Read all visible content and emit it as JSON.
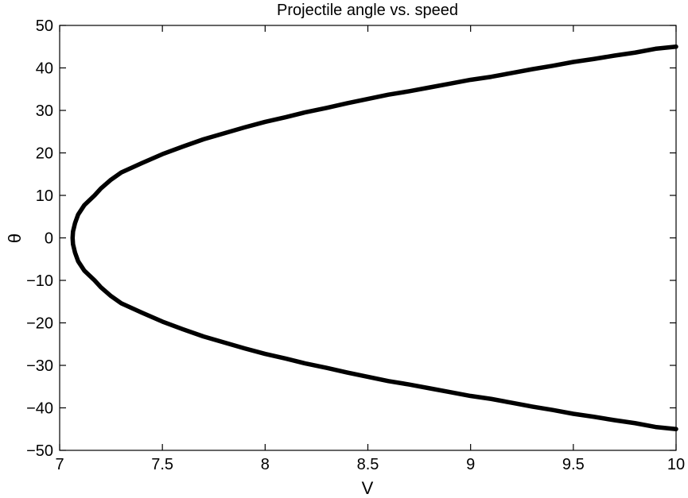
{
  "chart_data": {
    "type": "line",
    "title": "Projectile angle vs. speed",
    "xlabel": "V",
    "ylabel": "θ",
    "xlim": [
      7,
      10
    ],
    "ylim": [
      -50,
      50
    ],
    "x_ticks": [
      "7",
      "7.5",
      "8",
      "8.5",
      "9",
      "9.5",
      "10"
    ],
    "y_ticks": [
      "50",
      "40",
      "30",
      "20",
      "10",
      "0",
      "−10",
      "−20",
      "−30",
      "−40",
      "−50"
    ],
    "x_tick_values": [
      7,
      7.5,
      8,
      8.5,
      9,
      9.5,
      10
    ],
    "y_tick_values": [
      50,
      40,
      30,
      20,
      10,
      0,
      -10,
      -20,
      -30,
      -40,
      -50
    ],
    "grid": false,
    "series": [
      {
        "color": "#000000",
        "points": [
          [
            10.0,
            45.0
          ],
          [
            9.9,
            44.5
          ],
          [
            9.8,
            43.6
          ],
          [
            9.7,
            42.9
          ],
          [
            9.6,
            42.1
          ],
          [
            9.5,
            41.4
          ],
          [
            9.4,
            40.5
          ],
          [
            9.3,
            39.7
          ],
          [
            9.2,
            38.8
          ],
          [
            9.1,
            37.9
          ],
          [
            9.0,
            37.2
          ],
          [
            8.9,
            36.3
          ],
          [
            8.8,
            35.4
          ],
          [
            8.7,
            34.5
          ],
          [
            8.6,
            33.7
          ],
          [
            8.5,
            32.7
          ],
          [
            8.4,
            31.7
          ],
          [
            8.3,
            30.6
          ],
          [
            8.2,
            29.6
          ],
          [
            8.1,
            28.4
          ],
          [
            8.0,
            27.3
          ],
          [
            7.9,
            26.0
          ],
          [
            7.8,
            24.6
          ],
          [
            7.7,
            23.2
          ],
          [
            7.6,
            21.5
          ],
          [
            7.5,
            19.7
          ],
          [
            7.4,
            17.6
          ],
          [
            7.3,
            15.4
          ],
          [
            7.25,
            13.7
          ],
          [
            7.2,
            11.6
          ],
          [
            7.17,
            10.0
          ],
          [
            7.12,
            7.7
          ],
          [
            7.09,
            5.5
          ],
          [
            7.075,
            3.5
          ],
          [
            7.065,
            1.5
          ],
          [
            7.063,
            0.0
          ],
          [
            7.065,
            -1.5
          ],
          [
            7.075,
            -3.5
          ],
          [
            7.09,
            -5.5
          ],
          [
            7.12,
            -7.7
          ],
          [
            7.17,
            -10.0
          ],
          [
            7.2,
            -11.6
          ],
          [
            7.25,
            -13.7
          ],
          [
            7.3,
            -15.4
          ],
          [
            7.4,
            -17.6
          ],
          [
            7.5,
            -19.7
          ],
          [
            7.6,
            -21.5
          ],
          [
            7.7,
            -23.2
          ],
          [
            7.8,
            -24.6
          ],
          [
            7.9,
            -26.0
          ],
          [
            8.0,
            -27.3
          ],
          [
            8.1,
            -28.4
          ],
          [
            8.2,
            -29.6
          ],
          [
            8.3,
            -30.6
          ],
          [
            8.4,
            -31.7
          ],
          [
            8.5,
            -32.7
          ],
          [
            8.6,
            -33.7
          ],
          [
            8.7,
            -34.5
          ],
          [
            8.8,
            -35.4
          ],
          [
            8.9,
            -36.3
          ],
          [
            9.0,
            -37.2
          ],
          [
            9.1,
            -37.9
          ],
          [
            9.2,
            -38.8
          ],
          [
            9.3,
            -39.7
          ],
          [
            9.4,
            -40.5
          ],
          [
            9.5,
            -41.4
          ],
          [
            9.6,
            -42.1
          ],
          [
            9.7,
            -42.9
          ],
          [
            9.8,
            -43.6
          ],
          [
            9.9,
            -44.5
          ],
          [
            10.0,
            -45.0
          ]
        ]
      }
    ]
  }
}
